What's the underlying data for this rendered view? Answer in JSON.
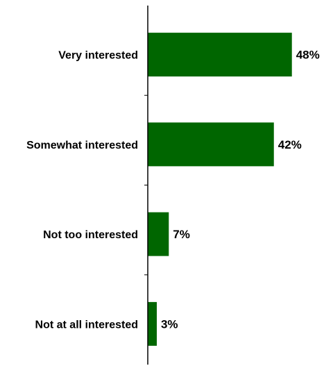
{
  "chart_data": {
    "type": "bar",
    "orientation": "horizontal",
    "categories": [
      "Very interested",
      "Somewhat interested",
      "Not too interested",
      "Not at all interested"
    ],
    "values": [
      48,
      42,
      7,
      3
    ],
    "value_labels": [
      "48%",
      "42%",
      "7%",
      "3%"
    ],
    "xlim": [
      0,
      55
    ],
    "grid": false,
    "legend": "none",
    "bar_color": "#006600"
  }
}
